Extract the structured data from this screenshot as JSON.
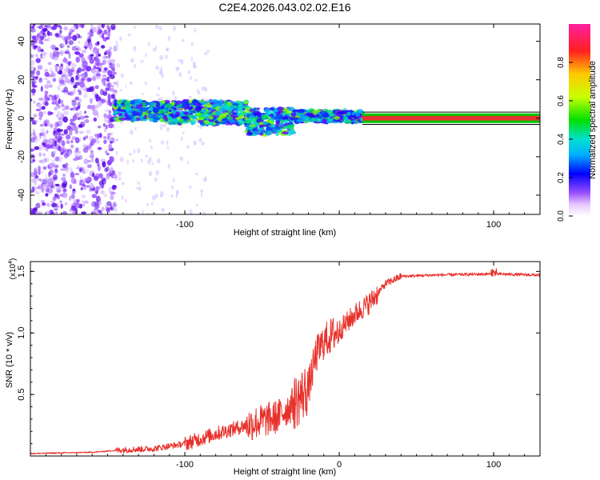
{
  "title": "C2E4.2026.043.02.02.E16",
  "colors": {
    "snr_line": "#e8302a",
    "axis": "#000000",
    "carrier": "#e83030",
    "carrier_edge": "#00c800"
  },
  "chart_data": [
    {
      "type": "heatmap",
      "name": "spectrogram",
      "xlabel": "Height of straight line (km)",
      "ylabel": "Frequency (Hz)",
      "xlim": [
        -200,
        130
      ],
      "ylim": [
        -50,
        49
      ],
      "xticks": [
        -100,
        0,
        100
      ],
      "xtick_labels": [
        "-100",
        "",
        "100"
      ],
      "yticks": [
        -40,
        -20,
        0,
        20,
        40
      ],
      "ytick_labels": [
        "-40",
        "-20",
        "0",
        "20",
        "40"
      ],
      "noise_region_km": [
        -200,
        -145
      ],
      "signal_band": {
        "segments": [
          {
            "x": [
              -145,
              -110
            ],
            "center_hz": 4,
            "half_width_hz": 5
          },
          {
            "x": [
              -110,
              -60
            ],
            "center_hz": 3,
            "half_width_hz": 6
          },
          {
            "x": [
              -60,
              -30
            ],
            "center_hz": -2,
            "half_width_hz": 7
          },
          {
            "x": [
              -30,
              15
            ],
            "center_hz": 1,
            "half_width_hz": 3
          }
        ],
        "carrier_start_km": 15,
        "carrier_hz": 0
      },
      "colorbar": {
        "label": "Normalized spectral amplitude",
        "range": [
          0,
          1
        ],
        "ticks": [
          0.0,
          0.2,
          0.4,
          0.6,
          0.8
        ],
        "tick_labels": [
          "0.0",
          "0.2",
          "0.4",
          "0.6",
          "0.8"
        ]
      }
    },
    {
      "type": "line",
      "name": "snr",
      "xlabel": "Height of straight line (km)",
      "ylabel": "SNR (10 * v/v)",
      "multiplier_label": "(x10",
      "multiplier_exp": "4",
      "multiplier_close": ")",
      "xlim": [
        -200,
        130
      ],
      "ylim": [
        0,
        1.58
      ],
      "xticks": [
        -100,
        0,
        100
      ],
      "xtick_labels": [
        "-100",
        "0",
        "100"
      ],
      "yticks": [
        0.5,
        1.0,
        1.5
      ],
      "ytick_labels": [
        "0.5",
        "1.0",
        "1.5"
      ],
      "anchors": [
        [
          -200,
          0.02
        ],
        [
          -160,
          0.03
        ],
        [
          -140,
          0.05
        ],
        [
          -120,
          0.06
        ],
        [
          -100,
          0.1
        ],
        [
          -80,
          0.18
        ],
        [
          -60,
          0.25
        ],
        [
          -40,
          0.32
        ],
        [
          -30,
          0.42
        ],
        [
          -20,
          0.55
        ],
        [
          -15,
          0.82
        ],
        [
          -10,
          0.93
        ],
        [
          -5,
          0.98
        ],
        [
          0,
          1.02
        ],
        [
          10,
          1.15
        ],
        [
          20,
          1.25
        ],
        [
          30,
          1.4
        ],
        [
          40,
          1.46
        ],
        [
          60,
          1.47
        ],
        [
          100,
          1.48
        ],
        [
          130,
          1.47
        ]
      ]
    }
  ]
}
